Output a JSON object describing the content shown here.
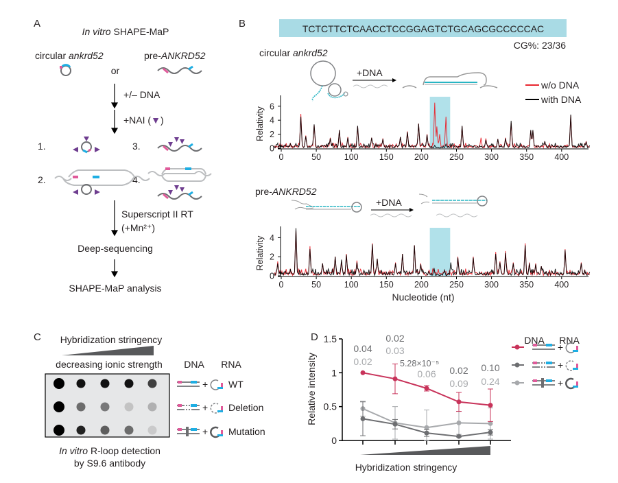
{
  "colors": {
    "red": "#e8262f",
    "wt": "#c8335a",
    "dark_gray": "#6d6e71",
    "light_gray": "#a7a9ac",
    "cyan": "#b1e1ea",
    "pink": "#e05a9a",
    "blue": "#1eaee3",
    "purple": "#6e3d8f"
  },
  "panelA": {
    "letter": "A",
    "title_italic": "In vitro",
    "title_rest": " SHAPE-MaP",
    "circ_prefix": "circular ",
    "circ_italic": "ankrd52",
    "pre_prefix": "pre-",
    "pre_italic": "ANKRD52",
    "or": "or",
    "step_dna": "+/– DNA",
    "step_nai": "+NAI (",
    "step_nai_close": ")",
    "n1": "1.",
    "n2": "2.",
    "n3": "3.",
    "n4": "4.",
    "rt": "Superscript II RT",
    "mn": "(+Mn²⁺)",
    "seq": "Deep-sequencing",
    "analysis": "SHAPE-MaP analysis"
  },
  "panelB": {
    "letter": "B",
    "sequence": "TCTCTTCTCAACCTCCGGAGTCTGCAGCGCCCCCAC",
    "cg": "CG%: 23/36",
    "circ_prefix": "circular ",
    "circ_italic": "ankrd52",
    "pre_prefix": "pre-",
    "pre_italic": "ANKRD52",
    "plus_dna": "+DNA",
    "legend": [
      "w/o DNA",
      "with DNA"
    ]
  },
  "panelC": {
    "letter": "C",
    "stringency": "Hybridization stringency",
    "ionic": "decreasing ionic strength",
    "dna": "DNA",
    "rna": "RNA",
    "rows": [
      "WT",
      "Deletion",
      "Mutation"
    ],
    "plus": "+",
    "caption_italic": "In vitro",
    "caption_rest": " R-loop detection",
    "caption2": "by S9.6 antibody",
    "dot_intensity": [
      [
        1,
        0.95,
        0.95,
        0.95,
        0.8
      ],
      [
        1,
        0.65,
        0.6,
        0.25,
        0.35
      ],
      [
        1,
        0.9,
        0.7,
        0.65,
        0.2
      ]
    ]
  },
  "panelD": {
    "letter": "D",
    "dna": "DNA",
    "rna": "RNA",
    "plus": "+",
    "pvalues_top": [
      "0.04",
      "0.02",
      "5.28×10⁻⁵",
      "0.02",
      "0.10"
    ],
    "pvalues_bottom": [
      "0.02",
      "0.03",
      "0.06",
      "0.09",
      "0.24"
    ]
  },
  "chart_data": [
    {
      "type": "line",
      "title": "circular ankrd52",
      "ylabel": "Relativity",
      "xlabel": "",
      "xlim": [
        -10,
        440
      ],
      "ylim": [
        0,
        6.5
      ],
      "xticks": [
        0,
        50,
        100,
        150,
        200,
        250,
        300,
        350,
        400
      ],
      "yticks": [
        0,
        2,
        4,
        6
      ],
      "highlight": [
        212,
        241
      ],
      "series": [
        {
          "name": "w/o DNA",
          "color": "#e8262f",
          "peaks": [
            [
              28,
              4.9
            ],
            [
              35,
              1.8
            ],
            [
              47,
              3.3
            ],
            [
              70,
              1.5
            ],
            [
              83,
              2.6
            ],
            [
              95,
              1.6
            ],
            [
              109,
              3.1
            ],
            [
              129,
              1.5
            ],
            [
              145,
              1.4
            ],
            [
              170,
              1.6
            ],
            [
              180,
              2.4
            ],
            [
              196,
              3.5
            ],
            [
              208,
              2.0
            ],
            [
              219,
              6.8
            ],
            [
              222,
              3.1
            ],
            [
              226,
              2.0
            ],
            [
              235,
              4.5
            ],
            [
              258,
              3.1
            ],
            [
              285,
              1.5
            ],
            [
              292,
              1.4
            ],
            [
              309,
              1.3
            ],
            [
              320,
              1.5
            ],
            [
              328,
              3.6
            ],
            [
              356,
              2.5
            ],
            [
              359,
              2.5
            ],
            [
              376,
              1.0
            ],
            [
              413,
              4.7
            ],
            [
              435,
              1.0
            ]
          ]
        },
        {
          "name": "with DNA",
          "color": "#000000",
          "peaks": [
            [
              28,
              4.5
            ],
            [
              35,
              1.7
            ],
            [
              47,
              3.4
            ],
            [
              70,
              1.4
            ],
            [
              83,
              2.6
            ],
            [
              95,
              1.5
            ],
            [
              109,
              3.2
            ],
            [
              129,
              1.5
            ],
            [
              145,
              1.3
            ],
            [
              170,
              1.6
            ],
            [
              180,
              2.3
            ],
            [
              196,
              3.5
            ],
            [
              208,
              1.9
            ],
            [
              219,
              0.4
            ],
            [
              235,
              0.6
            ],
            [
              258,
              3.2
            ],
            [
              292,
              1.2
            ],
            [
              309,
              1.3
            ],
            [
              320,
              1.4
            ],
            [
              328,
              3.9
            ],
            [
              356,
              2.6
            ],
            [
              359,
              2.6
            ],
            [
              376,
              1.0
            ],
            [
              413,
              4.8
            ],
            [
              435,
              0.9
            ]
          ]
        }
      ]
    },
    {
      "type": "line",
      "title": "pre-ANKRD52",
      "ylabel": "Relativity",
      "xlabel": "Nucleotide (nt)",
      "xlim": [
        -10,
        440
      ],
      "ylim": [
        0,
        5
      ],
      "xticks": [
        0,
        50,
        100,
        150,
        200,
        250,
        300,
        350,
        400
      ],
      "yticks": [
        0,
        2,
        4
      ],
      "highlight": [
        212,
        241
      ],
      "series": [
        {
          "name": "w/o DNA",
          "color": "#e8262f",
          "peaks": [
            [
              -5,
              1.5
            ],
            [
              21,
              4.7
            ],
            [
              41,
              3.1
            ],
            [
              59,
              1.3
            ],
            [
              77,
              2.0
            ],
            [
              86,
              1.5
            ],
            [
              93,
              2.3
            ],
            [
              108,
              1.6
            ],
            [
              130,
              3.4
            ],
            [
              137,
              1.8
            ],
            [
              163,
              1.4
            ],
            [
              173,
              2.3
            ],
            [
              190,
              3.2
            ],
            [
              199,
              1.3
            ],
            [
              252,
              2.0
            ],
            [
              274,
              2.0
            ],
            [
              306,
              2.5
            ],
            [
              312,
              1.5
            ],
            [
              320,
              2.6
            ],
            [
              331,
              1.4
            ],
            [
              348,
              3.4
            ],
            [
              354,
              1.4
            ],
            [
              363,
              1.3
            ],
            [
              371,
              1.0
            ],
            [
              405,
              2.8
            ],
            [
              428,
              1.4
            ]
          ]
        },
        {
          "name": "with DNA",
          "color": "#000000",
          "peaks": [
            [
              -5,
              1.3
            ],
            [
              21,
              5.0
            ],
            [
              41,
              2.8
            ],
            [
              59,
              1.3
            ],
            [
              77,
              2.0
            ],
            [
              86,
              1.7
            ],
            [
              93,
              2.2
            ],
            [
              108,
              1.4
            ],
            [
              130,
              3.3
            ],
            [
              137,
              1.8
            ],
            [
              163,
              1.3
            ],
            [
              173,
              2.3
            ],
            [
              190,
              3.2
            ],
            [
              199,
              1.2
            ],
            [
              218,
              0.8
            ],
            [
              233,
              0.6
            ],
            [
              242,
              1.4
            ],
            [
              252,
              1.9
            ],
            [
              274,
              1.9
            ],
            [
              306,
              2.3
            ],
            [
              312,
              1.4
            ],
            [
              320,
              2.4
            ],
            [
              331,
              1.3
            ],
            [
              348,
              3.2
            ],
            [
              354,
              1.3
            ],
            [
              363,
              1.2
            ],
            [
              371,
              1.0
            ],
            [
              405,
              2.7
            ],
            [
              428,
              1.3
            ]
          ]
        }
      ]
    },
    {
      "type": "line",
      "ylabel": "Relative intensity",
      "xlabel": "Hybridization stringency",
      "ylim": [
        0,
        1.5
      ],
      "yticks": [
        "0",
        "0.5",
        "1",
        "1.5"
      ],
      "legend": "top-right",
      "series": [
        {
          "color": "#c8335a",
          "values": [
            1.0,
            0.91,
            0.77,
            0.57,
            0.52
          ],
          "errors": [
            0,
            0.22,
            0.04,
            0.14,
            0.24
          ]
        },
        {
          "color": "#6d6e71",
          "values": [
            0.32,
            0.24,
            0.11,
            0.06,
            0.12
          ],
          "errors": [
            0.25,
            0.07,
            0.05,
            0.01,
            0.04
          ]
        },
        {
          "color": "#a7a9ac",
          "values": [
            0.47,
            0.26,
            0.19,
            0.26,
            0.25
          ],
          "errors": [
            0.11,
            0.24,
            0.26,
            0.17,
            0.23
          ]
        }
      ]
    }
  ]
}
